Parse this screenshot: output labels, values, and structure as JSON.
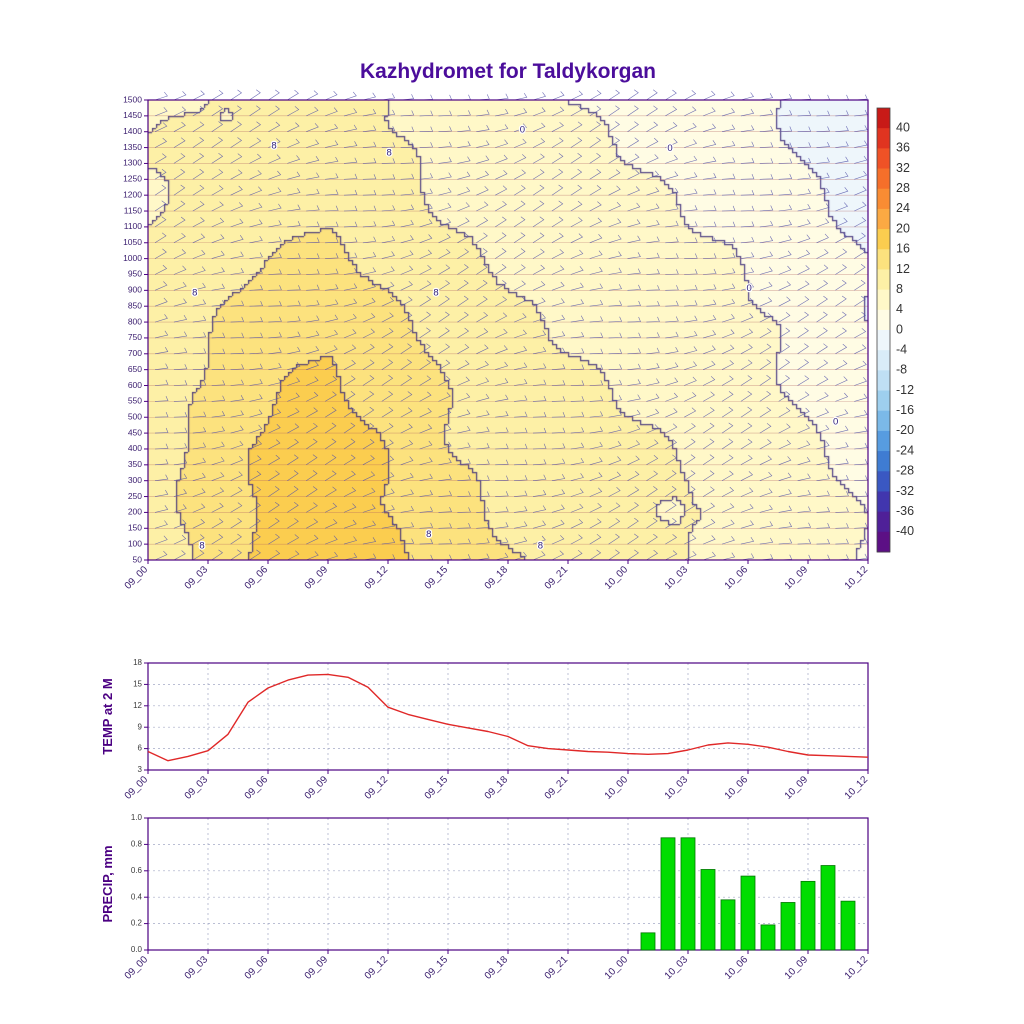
{
  "title": "Kazhydromet for Taldykorgan",
  "colors": {
    "title_text": "#4b0d9b",
    "axis": "#4b0082",
    "tick_text": "#3a1d6e",
    "panel_tick_text": "#3a3a3a",
    "temp_line": "#e02828",
    "precip_bar": "#00dd00",
    "precip_bar_edge": "#007700",
    "barb": "#5555aa",
    "level_line": "#b06060",
    "contour": "#3a2a7a",
    "grid_dash": "#9aa0c0",
    "colorbar_text": "#333333"
  },
  "time_labels": [
    "09_00",
    "09_03",
    "09_06",
    "09_09",
    "09_12",
    "09_15",
    "09_18",
    "09_21",
    "10_00",
    "10_03",
    "10_06",
    "10_09",
    "10_12"
  ],
  "chart_data": [
    {
      "type": "heatmap",
      "title": "Kazhydromet for Taldykorgan",
      "ylabel": "",
      "units": "deg C",
      "x_tick_labels": [
        "09_00",
        "09_03",
        "09_06",
        "09_09",
        "09_12",
        "09_15",
        "09_18",
        "09_21",
        "10_00",
        "10_03",
        "10_06",
        "10_09",
        "10_12"
      ],
      "y_tick_labels": [
        "1500",
        "1450",
        "1400",
        "1350",
        "1300",
        "1250",
        "1200",
        "1150",
        "1100",
        "1050",
        "1000",
        "950",
        "900",
        "850",
        "800",
        "750",
        "700",
        "650",
        "600",
        "550",
        "500",
        "450",
        "400",
        "350",
        "300",
        "250",
        "200",
        "150",
        "100",
        "50"
      ],
      "grid": {
        "times_hours": [
          0,
          3,
          6,
          9,
          12,
          15,
          18,
          21,
          24,
          27,
          30,
          33,
          36
        ],
        "levels_m": [
          1500,
          1300,
          1100,
          900,
          700,
          500,
          300,
          50
        ],
        "values": [
          [
            7,
            8,
            8,
            9,
            8,
            6,
            5,
            4,
            3,
            2,
            1,
            -1,
            -3
          ],
          [
            8,
            9,
            10,
            10,
            9,
            7,
            6,
            5,
            4,
            3,
            2,
            0,
            -2
          ],
          [
            8,
            10,
            11,
            12,
            10,
            8,
            7,
            6,
            5,
            4,
            3,
            1,
            -1
          ],
          [
            9,
            11,
            13,
            14,
            12,
            10,
            8,
            7,
            6,
            5,
            4,
            2,
            0
          ],
          [
            9,
            12,
            15,
            16,
            14,
            11,
            9,
            8,
            7,
            6,
            5,
            3,
            1
          ],
          [
            10,
            13,
            16,
            17,
            15,
            12,
            10,
            9,
            8,
            7,
            6,
            4,
            2
          ],
          [
            10,
            14,
            17,
            18,
            16,
            13,
            11,
            10,
            9,
            8,
            6,
            5,
            3
          ],
          [
            9,
            13,
            17,
            18,
            17,
            14,
            12,
            11,
            9,
            8,
            7,
            6,
            4
          ]
        ]
      },
      "wind_barbs": "light wind barbs plotted at every level and time step",
      "contour_labels": [
        {
          "text": "8",
          "fx": 0.065,
          "fy": 0.42
        },
        {
          "text": "8",
          "fx": 0.175,
          "fy": 0.1
        },
        {
          "text": "8",
          "fx": 0.335,
          "fy": 0.115
        },
        {
          "text": "8",
          "fx": 0.4,
          "fy": 0.42
        },
        {
          "text": "0",
          "fx": 0.52,
          "fy": 0.065
        },
        {
          "text": "0",
          "fx": 0.725,
          "fy": 0.105
        },
        {
          "text": "0",
          "fx": 0.835,
          "fy": 0.41
        },
        {
          "text": "0",
          "fx": 0.955,
          "fy": 0.7
        },
        {
          "text": "8",
          "fx": 0.075,
          "fy": 0.97
        },
        {
          "text": "8",
          "fx": 0.39,
          "fy": 0.945
        },
        {
          "text": "8",
          "fx": 0.545,
          "fy": 0.97
        }
      ],
      "colorbar": {
        "tick_labels": [
          "40",
          "36",
          "32",
          "28",
          "24",
          "20",
          "16",
          "12",
          "8",
          "4",
          "0",
          "-4",
          "-8",
          "-12",
          "-16",
          "-20",
          "-24",
          "-28",
          "-32",
          "-36",
          "-40"
        ],
        "colors_top_to_bottom": [
          "#c81a17",
          "#e03420",
          "#ef5226",
          "#f56f2a",
          "#f98c33",
          "#fba943",
          "#fbcd4f",
          "#fce27e",
          "#fdf0a6",
          "#fff8c8",
          "#fffce4",
          "#eef6fb",
          "#d9ecf8",
          "#bfdff4",
          "#9ecfee",
          "#7bb9e8",
          "#579ce0",
          "#3f7cd2",
          "#3a58c2",
          "#4136ae",
          "#4f2098",
          "#5c1085"
        ],
        "value_max": 44,
        "value_min": -44,
        "step": 4
      }
    },
    {
      "type": "line",
      "ylabel": "TEMP at 2 M",
      "ylim": [
        3,
        18
      ],
      "yticks": [
        3,
        6,
        9,
        12,
        15,
        18
      ],
      "y_tick_labels": [
        "3",
        "6",
        "9",
        "12",
        "15",
        "18"
      ],
      "x_tick_labels": [
        "09_00",
        "09_03",
        "09_06",
        "09_09",
        "09_12",
        "09_15",
        "09_18",
        "09_21",
        "10_00",
        "10_03",
        "10_06",
        "10_09",
        "10_12"
      ],
      "x_start_hour": 0,
      "x_step_hours": 1,
      "values": [
        5.6,
        4.3,
        4.9,
        5.7,
        8.0,
        12.5,
        14.5,
        15.6,
        16.3,
        16.4,
        16.0,
        14.6,
        11.8,
        10.8,
        10.1,
        9.4,
        8.9,
        8.4,
        7.7,
        6.4,
        6.0,
        5.8,
        5.6,
        5.5,
        5.3,
        5.2,
        5.3,
        5.8,
        6.5,
        6.8,
        6.6,
        6.2,
        5.6,
        5.1,
        5.0,
        4.9,
        4.8
      ]
    },
    {
      "type": "bar",
      "ylabel": "PRECIP, mm",
      "ylim": [
        0.0,
        1.0
      ],
      "yticks": [
        0.0,
        0.2,
        0.4,
        0.6,
        0.8,
        1.0
      ],
      "y_tick_labels": [
        "0.0",
        "0.2",
        "0.4",
        "0.6",
        "0.8",
        "1.0"
      ],
      "x_tick_labels": [
        "09_00",
        "09_03",
        "09_06",
        "09_09",
        "09_12",
        "09_15",
        "09_18",
        "09_21",
        "10_00",
        "10_03",
        "10_06",
        "10_09",
        "10_12"
      ],
      "bars": [
        {
          "hour": 25,
          "value": 0.13
        },
        {
          "hour": 26,
          "value": 0.85
        },
        {
          "hour": 27,
          "value": 0.85
        },
        {
          "hour": 28,
          "value": 0.61
        },
        {
          "hour": 29,
          "value": 0.38
        },
        {
          "hour": 30,
          "value": 0.56
        },
        {
          "hour": 31,
          "value": 0.19
        },
        {
          "hour": 32,
          "value": 0.36
        },
        {
          "hour": 33,
          "value": 0.52
        },
        {
          "hour": 34,
          "value": 0.64
        },
        {
          "hour": 35,
          "value": 0.37
        }
      ]
    }
  ]
}
